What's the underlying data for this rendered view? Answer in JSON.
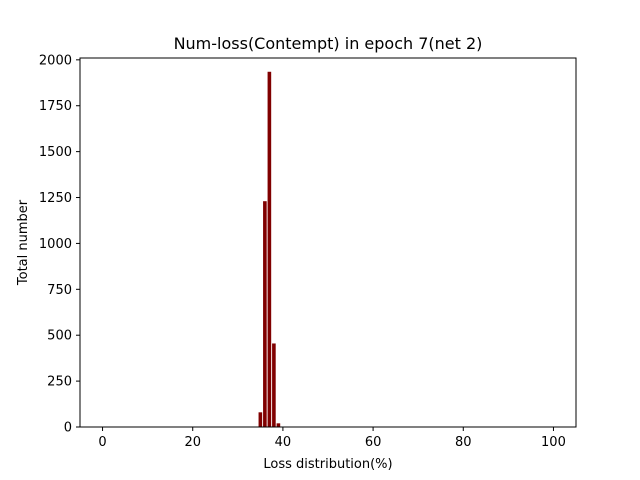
{
  "chart_data": {
    "type": "bar",
    "title": "Num-loss(Contempt) in epoch 7(net 2)",
    "xlabel": "Loss distribution(%)",
    "ylabel": "Total number",
    "xlim": [
      -5,
      105
    ],
    "ylim": [
      0,
      2010
    ],
    "xticks": [
      0,
      20,
      40,
      60,
      80,
      100
    ],
    "yticks": [
      0,
      250,
      500,
      750,
      1000,
      1250,
      1500,
      1750,
      2000
    ],
    "grid": false,
    "bar_color": "#800000",
    "bar_width": 0.8,
    "x": [
      35,
      36,
      37,
      38,
      39
    ],
    "values": [
      80,
      1230,
      1935,
      455,
      20
    ]
  }
}
